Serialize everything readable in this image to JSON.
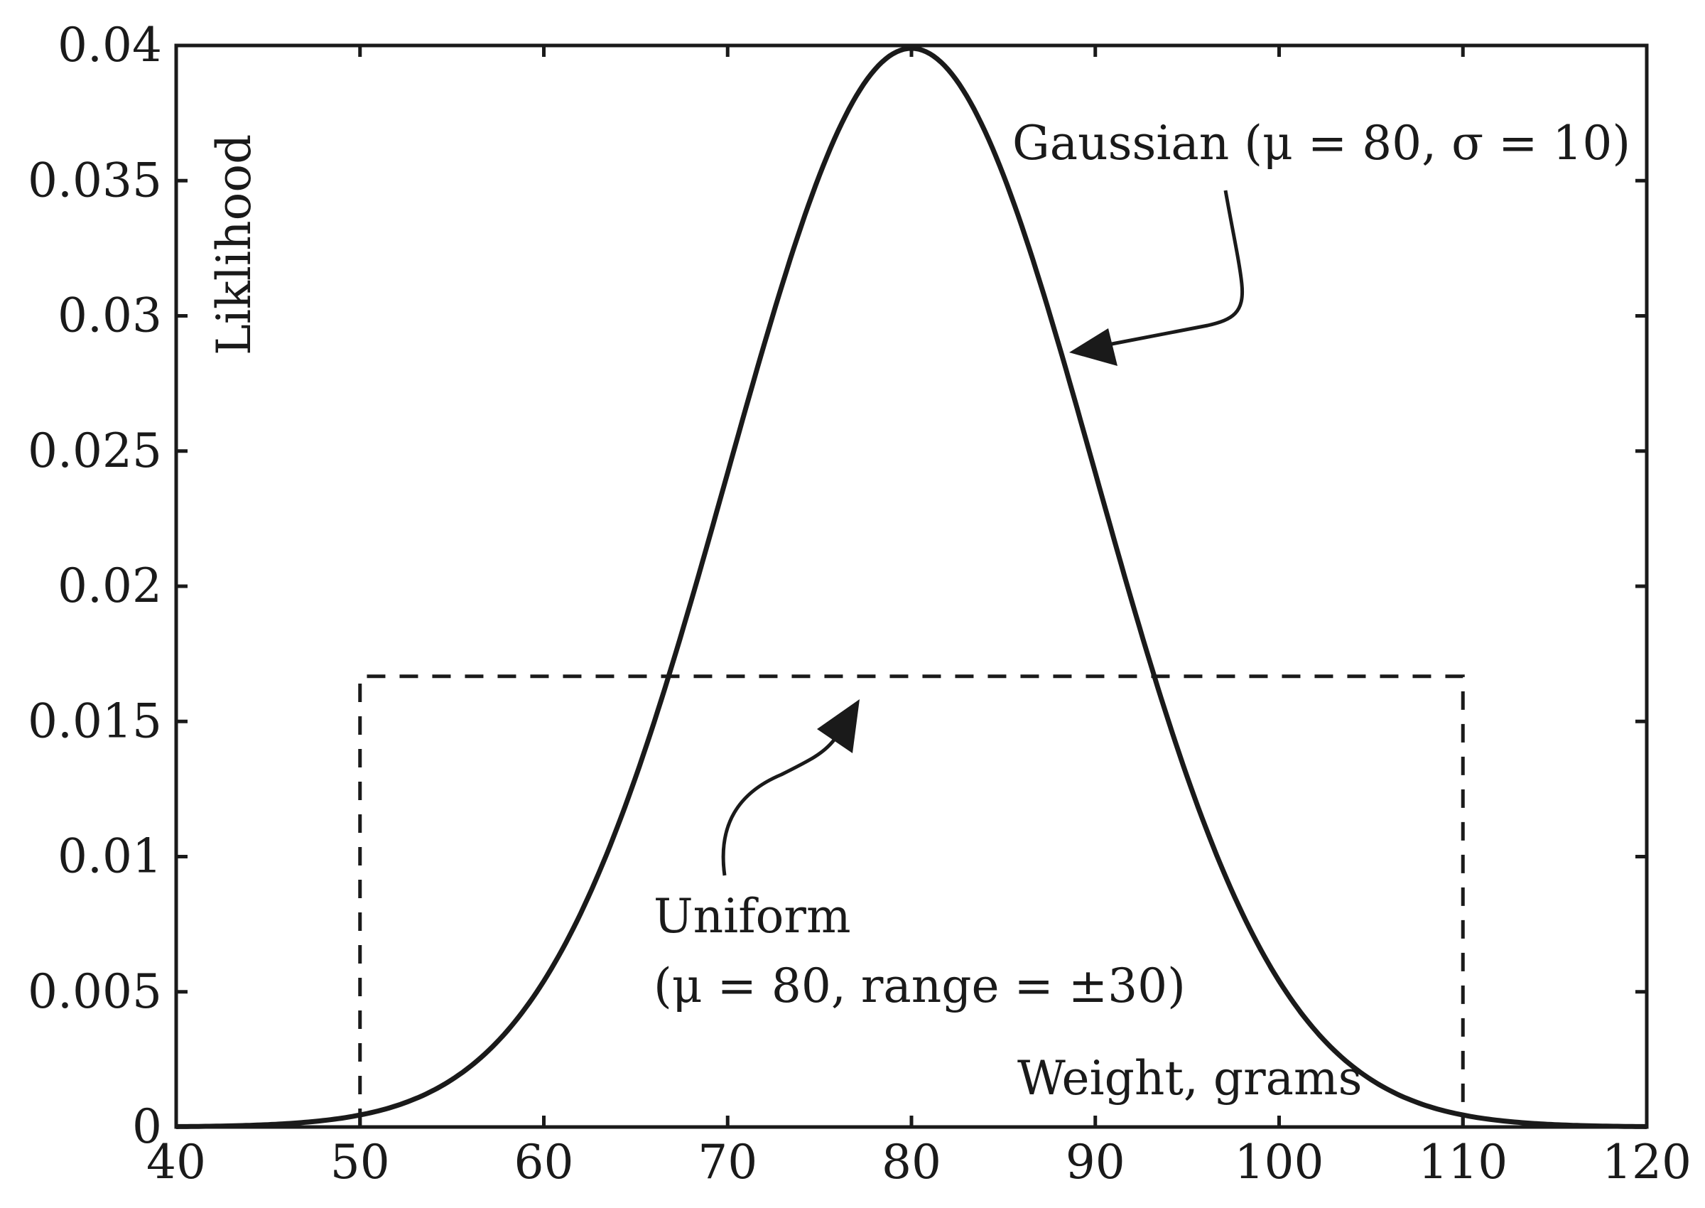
{
  "chart_data": {
    "type": "line",
    "xlabel": "Weight, grams",
    "ylabel": "Liklihood",
    "xlim": [
      40,
      120
    ],
    "ylim": [
      0,
      0.04
    ],
    "x_ticks": [
      40,
      50,
      60,
      70,
      80,
      90,
      100,
      110,
      120
    ],
    "x_tick_labels": [
      "40",
      "50",
      "60",
      "70",
      "80",
      "90",
      "100",
      "110",
      "120"
    ],
    "y_ticks": [
      0,
      0.005,
      0.01,
      0.015,
      0.02,
      0.025,
      0.03,
      0.035,
      0.04
    ],
    "y_tick_labels": [
      "0",
      "0.005",
      "0.01",
      "0.015",
      "0.02",
      "0.025",
      "0.03",
      "0.035",
      "0.04"
    ],
    "grid": false,
    "series": [
      {
        "kind": "gaussian",
        "mu": 80,
        "sigma": 10,
        "line_style": "solid",
        "color": "#1a1a1a"
      },
      {
        "kind": "uniform",
        "mu": 80,
        "range": 30,
        "x_start": 50,
        "x_end": 110,
        "height": 0.01667,
        "line_style": "dashed",
        "color": "#1a1a1a"
      }
    ],
    "annotations": [
      {
        "text": "Gaussian (μ = 80, σ = 10)",
        "target_series": 0
      },
      {
        "line1": "Uniform",
        "line2": "(μ = 80, range = ±30)",
        "target_series": 1
      }
    ]
  }
}
